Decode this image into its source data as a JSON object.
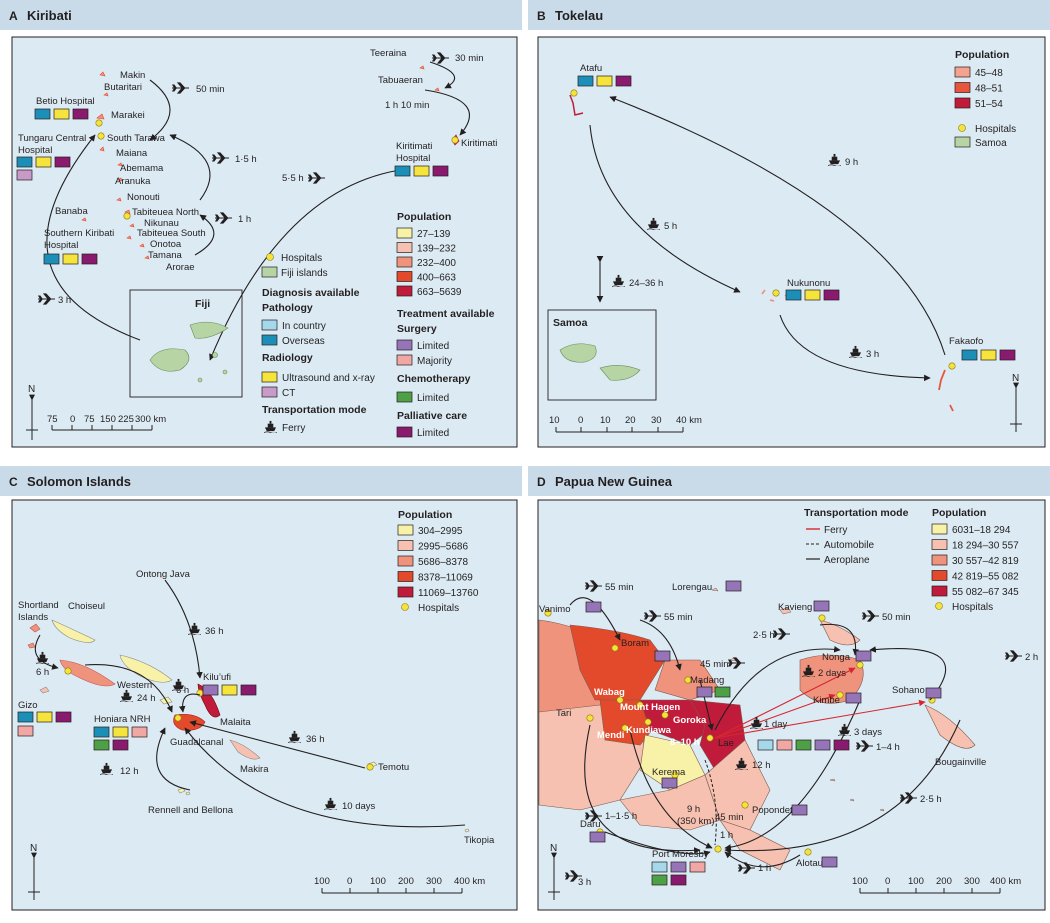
{
  "colors": {
    "sea": "#dcebf3",
    "pathology_in_country": "#a5d8ea",
    "pathology_overseas": "#1c8fb8",
    "radiology_us_xray": "#f6e33b",
    "radiology_ct": "#c79ac8",
    "surgery_limited": "#9674b8",
    "surgery_majority": "#f1a7a3",
    "chemo_limited": "#4ea046",
    "palliative_limited": "#8a1a6e",
    "hospital": "#f5e23a",
    "fiji_samoa": "#b7d5a4",
    "ferry_line": "#d7272e"
  },
  "panels": {
    "a": {
      "letter": "A",
      "title": "Kiribati",
      "places": {
        "makin": "Makin",
        "butaritari": "Butaritari",
        "marakei": "Marakei",
        "betio": "Betio Hospital",
        "tungaru1": "Tungaru Central",
        "tungaru2": "Hospital",
        "south_tarawa": "South Tarawa",
        "maiana": "Maiana",
        "abemama": "Abemama",
        "aranuka": "Aranuka",
        "nonouti": "Nonouti",
        "tab_north": "Tabiteuea North",
        "nikunau": "Nikunau",
        "tab_south": "Tabiteuea South",
        "onotoa": "Onotoa",
        "tamana": "Tamana",
        "arorae": "Arorae",
        "banaba": "Banaba",
        "southern1": "Southern Kiribati",
        "southern2": "Hospital",
        "teeraina": "Teeraina",
        "tabuaeran": "Tabuaeran",
        "kiritimati": "Kiritimati",
        "kir_hosp1": "Kiritimati",
        "kir_hosp2": "Hospital",
        "fiji": "Fiji"
      },
      "times": {
        "t50": "50 min",
        "t30": "30 min",
        "t110": "1 h 10 min",
        "t15": "1·5 h",
        "t1": "1 h",
        "t55": "5·5 h",
        "t3": "3 h"
      },
      "legend": {
        "hospitals": "Hospitals",
        "fiji_islands": "Fiji islands",
        "diag_title": "Diagnosis available",
        "pathology": "Pathology",
        "in_country": "In country",
        "overseas": "Overseas",
        "radiology": "Radiology",
        "us_xray": "Ultrasound and x-ray",
        "ct": "CT",
        "transport": "Transportation mode",
        "ferry": "Ferry",
        "population": "Population",
        "pop": [
          "27–139",
          "139–232",
          "232–400",
          "400–663",
          "663–5639"
        ],
        "pop_colors": [
          "#f7f2a8",
          "#f6c1b0",
          "#f0937d",
          "#e34a2b",
          "#c01b3a"
        ],
        "treat_title": "Treatment available",
        "surgery": "Surgery",
        "limited": "Limited",
        "majority": "Majority",
        "chemo": "Chemotherapy",
        "palliative": "Palliative care"
      },
      "scale": {
        "ticks": [
          "75",
          "0",
          "75",
          "150",
          "225",
          "300 km"
        ],
        "north": "N"
      }
    },
    "b": {
      "letter": "B",
      "title": "Tokelau",
      "places": {
        "atafu": "Atafu",
        "nukunonu": "Nukunonu",
        "fakaofo": "Fakaofo",
        "samoa": "Samoa"
      },
      "times": {
        "t9": "9 h",
        "t5": "5 h",
        "t2436": "24–36 h",
        "t3": "3 h"
      },
      "legend": {
        "population": "Population",
        "pop": [
          "45–48",
          "48–51",
          "51–54"
        ],
        "pop_colors": [
          "#f4a38f",
          "#e8553d",
          "#c01b3a"
        ],
        "hospitals": "Hospitals",
        "samoa": "Samoa"
      },
      "scale": {
        "ticks": [
          "10",
          "0",
          "10",
          "20",
          "30",
          "40 km"
        ],
        "north": "N"
      }
    },
    "c": {
      "letter": "C",
      "title": "Solomon Islands",
      "places": {
        "ontong": "Ontong Java",
        "shortland1": "Shortland",
        "shortland2": "Islands",
        "choiseul": "Choiseul",
        "western": "Western",
        "kilufi": "Kilu’ufi",
        "malaita": "Malaita",
        "gizo": "Gizo",
        "honiara": "Honiara NRH",
        "guadalcanal": "Guadalcanal",
        "makira": "Makira",
        "temotu": "Temotu",
        "rennell": "Rennell and Bellona",
        "tikopia": "Tikopia"
      },
      "times": {
        "t36a": "36 h",
        "t6a": "6 h",
        "t24": "24 h",
        "t6b": "6 h",
        "t36b": "36 h",
        "t12": "12 h",
        "t10d": "10 days"
      },
      "legend": {
        "population": "Population",
        "pop": [
          "304–2995",
          "2995–5686",
          "5686–8378",
          "8378–11069",
          "11069–13760"
        ],
        "pop_colors": [
          "#f7f2a8",
          "#f6c1b0",
          "#f0937d",
          "#e34a2b",
          "#c01b3a"
        ],
        "hospitals": "Hospitals"
      },
      "scale": {
        "ticks": [
          "100",
          "0",
          "100",
          "200",
          "300",
          "400 km"
        ],
        "north": "N"
      }
    },
    "d": {
      "letter": "D",
      "title": "Papua New Guinea",
      "places": {
        "vanimo": "Vanimo",
        "lorengau": "Lorengau",
        "kavieng": "Kavieng",
        "boram": "Boram",
        "madang": "Madang",
        "wabag": "Wabag",
        "mount_hagen": "Mount Hagen",
        "goroka": "Goroka",
        "kundiawa": "Kundiawa",
        "mendi": "Mendi",
        "tari": "Tari",
        "nonga": "Nonga",
        "kimbe": "Kimbe",
        "sohano": "Sohano",
        "bougainville": "Bougainville",
        "lae": "Lae",
        "kerema": "Kerema",
        "popondetta": "Popondetta",
        "daru": "Daru",
        "port_moresby": "Port Moresby",
        "alotau": "Alotau"
      },
      "times": {
        "t55a": "55 min",
        "t55b": "55 min",
        "t50": "50 min",
        "t25a": "2·5 h",
        "t45a": "45 min",
        "t2days": "2 days",
        "t2h": "2 h",
        "t1day": "1 day",
        "t3days": "3 days",
        "t810": "8–10 h",
        "t12": "12 h",
        "t14": "1–4 h",
        "t9": "9 h",
        "t350": "(350 km)",
        "t45b": "45 min",
        "t1h": "1 h",
        "t115": "1–1·5 h",
        "t25b": "2·5 h",
        "t3h": "3 h",
        "t1hb": "1 h"
      },
      "legend": {
        "transport": "Transportation mode",
        "ferry": "Ferry",
        "automobile": "Automobile",
        "aeroplane": "Aeroplane",
        "population": "Population",
        "pop": [
          "6031–18 294",
          "18 294–30 557",
          "30 557–42 819",
          "42 819–55 082",
          "55 082–67 345"
        ],
        "pop_colors": [
          "#f7f2a8",
          "#f6c1b0",
          "#f0937d",
          "#e34a2b",
          "#c01b3a"
        ],
        "hospitals": "Hospitals"
      },
      "scale": {
        "ticks": [
          "100",
          "0",
          "100",
          "200",
          "300",
          "400 km"
        ],
        "north": "N"
      }
    }
  }
}
